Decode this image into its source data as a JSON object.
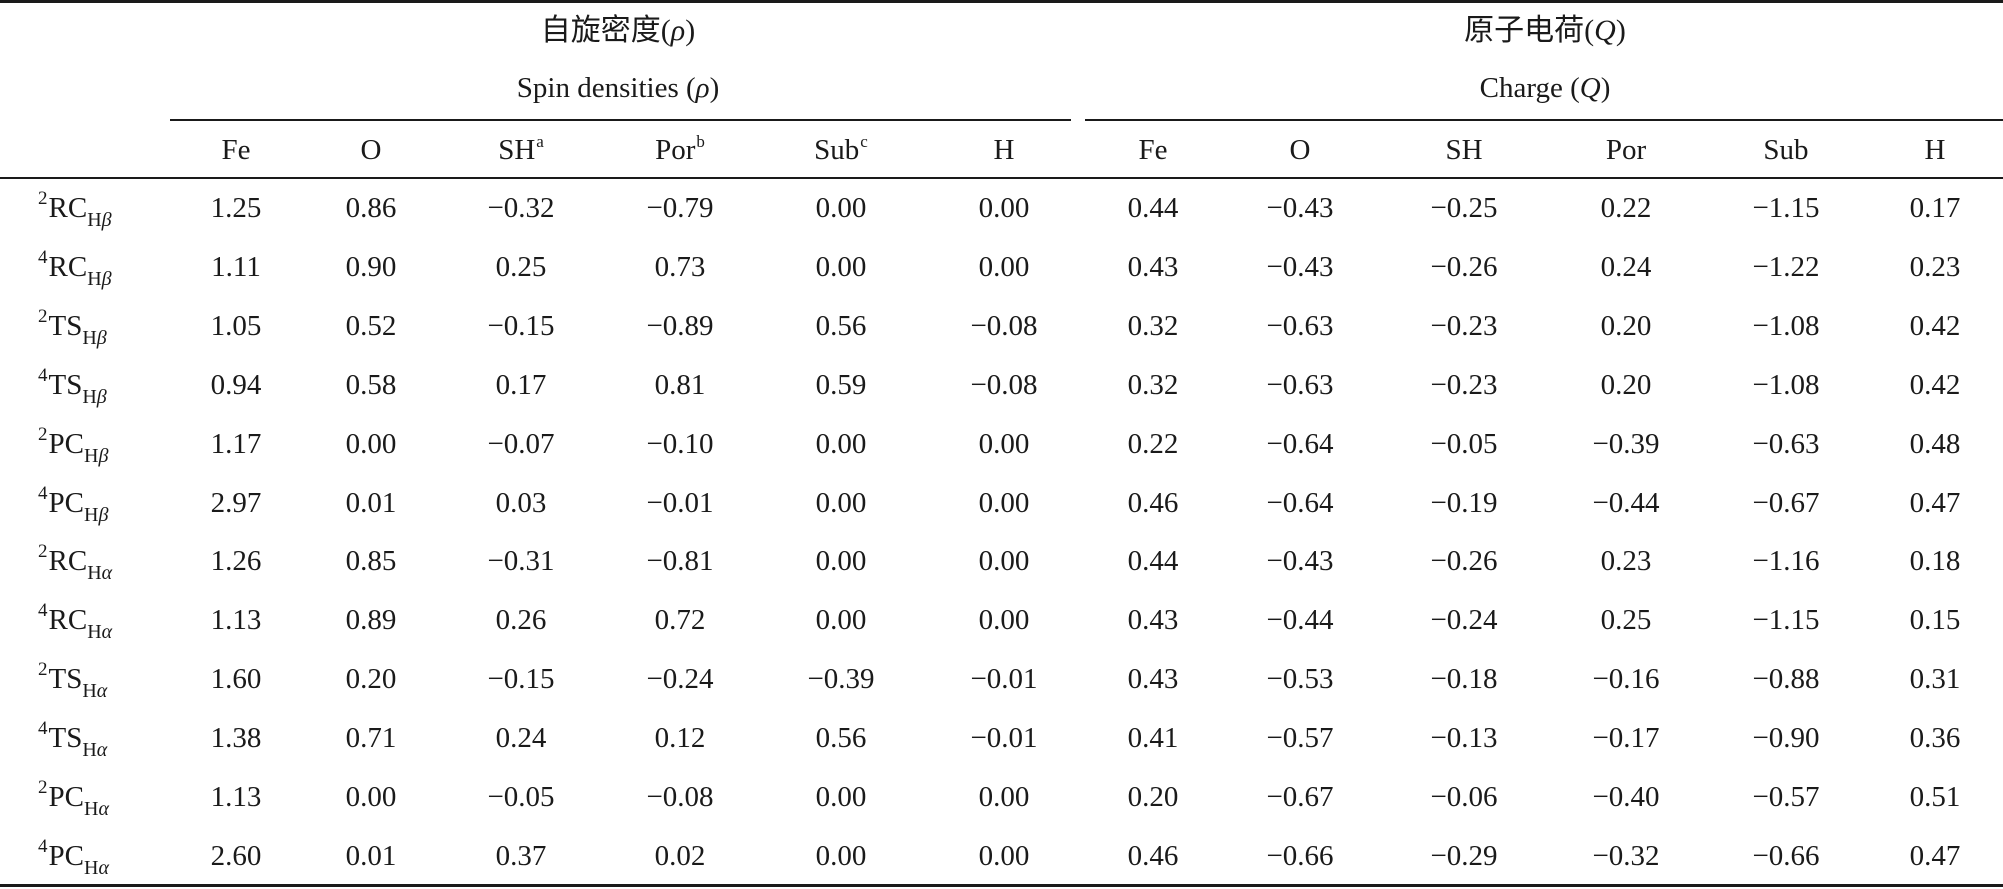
{
  "headers": {
    "group1_cn": "自旋密度(ρ)",
    "group1_en": "Spin densities (ρ)",
    "group2_cn": "原子电荷(Q)",
    "group2_en": "Charge (Q)"
  },
  "columns": [
    {
      "name": "Fe",
      "note": ""
    },
    {
      "name": "O",
      "note": ""
    },
    {
      "name": "SH",
      "note": "a"
    },
    {
      "name": "Por",
      "note": "b"
    },
    {
      "name": "Sub",
      "note": "c"
    },
    {
      "name": "H",
      "note": ""
    },
    {
      "name": "Fe",
      "note": ""
    },
    {
      "name": "O",
      "note": ""
    },
    {
      "name": "SH",
      "note": ""
    },
    {
      "name": "Por",
      "note": ""
    },
    {
      "name": "Sub",
      "note": ""
    },
    {
      "name": "H",
      "note": ""
    }
  ],
  "rows": [
    {
      "mult": "2",
      "species": "RC",
      "sub": "Hβ",
      "values": [
        "1.25",
        "0.86",
        "−0.32",
        "−0.79",
        "0.00",
        "0.00",
        "0.44",
        "−0.43",
        "−0.25",
        "0.22",
        "−1.15",
        "0.17"
      ]
    },
    {
      "mult": "4",
      "species": "RC",
      "sub": "Hβ",
      "values": [
        "1.11",
        "0.90",
        "0.25",
        "0.73",
        "0.00",
        "0.00",
        "0.43",
        "−0.43",
        "−0.26",
        "0.24",
        "−1.22",
        "0.23"
      ]
    },
    {
      "mult": "2",
      "species": "TS",
      "sub": "Hβ",
      "values": [
        "1.05",
        "0.52",
        "−0.15",
        "−0.89",
        "0.56",
        "−0.08",
        "0.32",
        "−0.63",
        "−0.23",
        "0.20",
        "−1.08",
        "0.42"
      ]
    },
    {
      "mult": "4",
      "species": "TS",
      "sub": "Hβ",
      "values": [
        "0.94",
        "0.58",
        "0.17",
        "0.81",
        "0.59",
        "−0.08",
        "0.32",
        "−0.63",
        "−0.23",
        "0.20",
        "−1.08",
        "0.42"
      ]
    },
    {
      "mult": "2",
      "species": "PC",
      "sub": "Hβ",
      "values": [
        "1.17",
        "0.00",
        "−0.07",
        "−0.10",
        "0.00",
        "0.00",
        "0.22",
        "−0.64",
        "−0.05",
        "−0.39",
        "−0.63",
        "0.48"
      ]
    },
    {
      "mult": "4",
      "species": "PC",
      "sub": "Hβ",
      "values": [
        "2.97",
        "0.01",
        "0.03",
        "−0.01",
        "0.00",
        "0.00",
        "0.46",
        "−0.64",
        "−0.19",
        "−0.44",
        "−0.67",
        "0.47"
      ]
    },
    {
      "mult": "2",
      "species": "RC",
      "sub": "Hα",
      "values": [
        "1.26",
        "0.85",
        "−0.31",
        "−0.81",
        "0.00",
        "0.00",
        "0.44",
        "−0.43",
        "−0.26",
        "0.23",
        "−1.16",
        "0.18"
      ]
    },
    {
      "mult": "4",
      "species": "RC",
      "sub": "Hα",
      "values": [
        "1.13",
        "0.89",
        "0.26",
        "0.72",
        "0.00",
        "0.00",
        "0.43",
        "−0.44",
        "−0.24",
        "0.25",
        "−1.15",
        "0.15"
      ]
    },
    {
      "mult": "2",
      "species": "TS",
      "sub": "Hα",
      "values": [
        "1.60",
        "0.20",
        "−0.15",
        "−0.24",
        "−0.39",
        "−0.01",
        "0.43",
        "−0.53",
        "−0.18",
        "−0.16",
        "−0.88",
        "0.31"
      ]
    },
    {
      "mult": "4",
      "species": "TS",
      "sub": "Hα",
      "values": [
        "1.38",
        "0.71",
        "0.24",
        "0.12",
        "0.56",
        "−0.01",
        "0.41",
        "−0.57",
        "−0.13",
        "−0.17",
        "−0.90",
        "0.36"
      ]
    },
    {
      "mult": "2",
      "species": "PC",
      "sub": "Hα",
      "values": [
        "1.13",
        "0.00",
        "−0.05",
        "−0.08",
        "0.00",
        "0.00",
        "0.20",
        "−0.67",
        "−0.06",
        "−0.40",
        "−0.57",
        "0.51"
      ]
    },
    {
      "mult": "4",
      "species": "PC",
      "sub": "Hα",
      "values": [
        "2.60",
        "0.01",
        "0.37",
        "0.02",
        "0.00",
        "0.00",
        "0.46",
        "−0.66",
        "−0.29",
        "−0.32",
        "−0.66",
        "0.47"
      ]
    }
  ]
}
